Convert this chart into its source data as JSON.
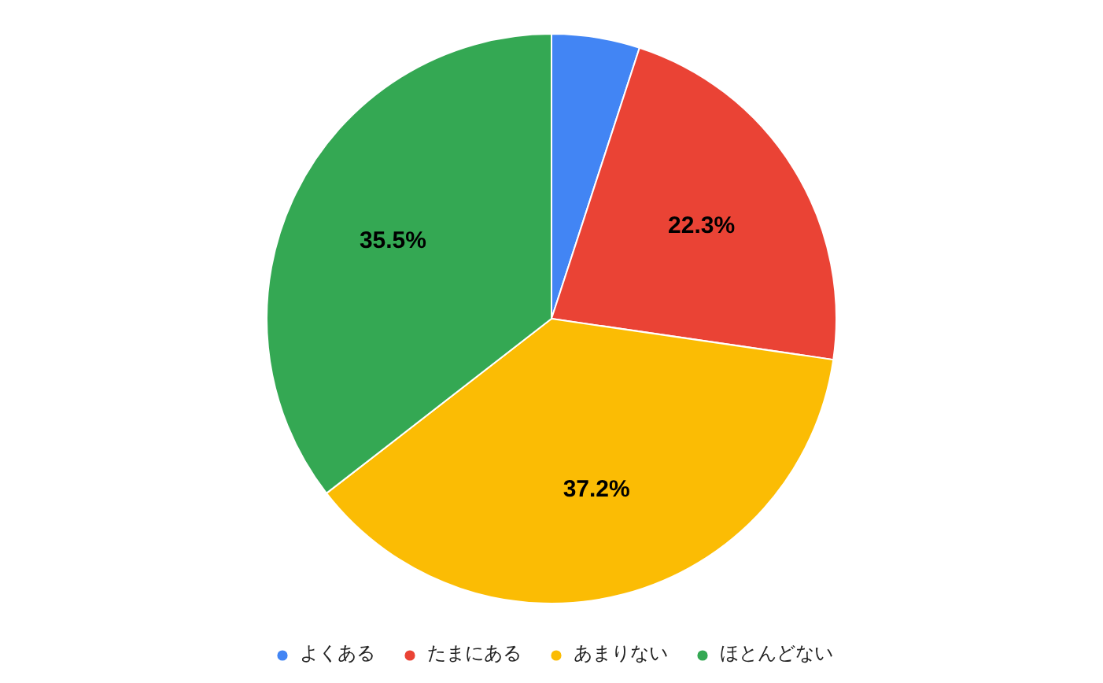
{
  "chart_data": {
    "type": "pie",
    "categories": [
      "よくある",
      "たまにある",
      "あまりない",
      "ほとんどない"
    ],
    "values": [
      5.0,
      22.3,
      37.2,
      35.5
    ],
    "colors": [
      "#4285f4",
      "#ea4335",
      "#fbbc04",
      "#34a853"
    ],
    "value_labels": [
      null,
      "22.3%",
      "37.2%",
      "35.5%"
    ],
    "legend": "bottom"
  }
}
